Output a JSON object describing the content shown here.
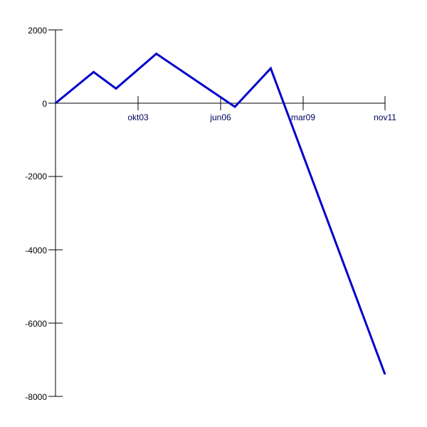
{
  "chart_data": {
    "type": "line",
    "title": "",
    "xlabel": "",
    "ylabel": "",
    "x_ticks": [
      "okt03",
      "jun06",
      "mar09",
      "nov11"
    ],
    "y_ticks": [
      "2000",
      "0",
      "-2000",
      "-4000",
      "-6000",
      "-8000"
    ],
    "ylim": [
      -8000,
      2000
    ],
    "grid": false,
    "legend": "none",
    "line_color": "#0000cc",
    "series": [
      {
        "points": [
          {
            "x": "2001-01",
            "y": 0
          },
          {
            "x": "2002-06",
            "y": 850
          },
          {
            "x": "2003-04",
            "y": 400
          },
          {
            "x": "2004-10",
            "y": 1350
          },
          {
            "x": "2007-09",
            "y": -100
          },
          {
            "x": "2009-01",
            "y": 950
          },
          {
            "x": "2013-04",
            "y": -7400
          }
        ]
      }
    ]
  }
}
